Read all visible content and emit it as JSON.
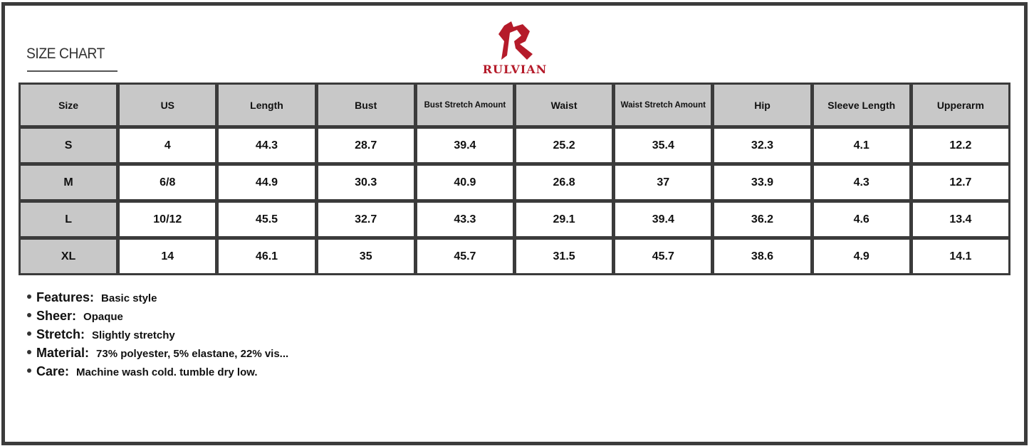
{
  "title": "SIZE CHART",
  "brand": {
    "name": "RULVIAN",
    "color": "#b51b2a"
  },
  "table": {
    "headers": [
      "Size",
      "US",
      "Length",
      "Bust",
      "Bust Stretch Amount",
      "Waist",
      "Waist Stretch Amount",
      "Hip",
      "Sleeve Length",
      "Upperarm"
    ],
    "rows": [
      [
        "S",
        "4",
        "44.3",
        "28.7",
        "39.4",
        "25.2",
        "35.4",
        "32.3",
        "4.1",
        "12.2"
      ],
      [
        "M",
        "6/8",
        "44.9",
        "30.3",
        "40.9",
        "26.8",
        "37",
        "33.9",
        "4.3",
        "12.7"
      ],
      [
        "L",
        "10/12",
        "45.5",
        "32.7",
        "43.3",
        "29.1",
        "39.4",
        "36.2",
        "4.6",
        "13.4"
      ],
      [
        "XL",
        "14",
        "46.1",
        "35",
        "45.7",
        "31.5",
        "45.7",
        "38.6",
        "4.9",
        "14.1"
      ]
    ]
  },
  "features": [
    {
      "label": "Features:",
      "value": "Basic style"
    },
    {
      "label": "Sheer:",
      "value": "Opaque"
    },
    {
      "label": "Stretch:",
      "value": "Slightly stretchy"
    },
    {
      "label": "Material:",
      "value": "73% polyester, 5% elastane, 22% vis..."
    },
    {
      "label": "Care:",
      "value": "Machine wash cold. tumble dry low."
    }
  ]
}
